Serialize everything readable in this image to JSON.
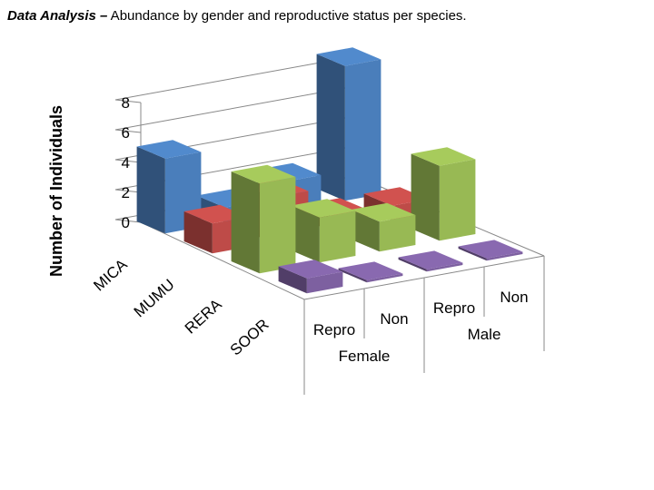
{
  "title_bold": "Data Analysis –",
  "title_rest": " Abundance by gender and reproductive status per species.",
  "chart_data": {
    "type": "bar3d",
    "ylabel": "Number of Individuals",
    "ylim": [
      0,
      8
    ],
    "yticks": [
      "0",
      "2",
      "4",
      "6",
      "8"
    ],
    "categories": [
      {
        "sub": "Repro",
        "group": "Female"
      },
      {
        "sub": "Non",
        "group": "Female"
      },
      {
        "sub": "Repro",
        "group": "Male"
      },
      {
        "sub": "Non",
        "group": "Male"
      }
    ],
    "group_labels": [
      "Female",
      "Male"
    ],
    "series": [
      {
        "name": "MICA",
        "color": "#4a7ebb",
        "values": [
          5,
          1,
          2,
          9
        ]
      },
      {
        "name": "MUMU",
        "color": "#be4b48",
        "values": [
          2,
          3,
          1,
          1
        ]
      },
      {
        "name": "RERA",
        "color": "#98b954",
        "values": [
          6,
          3,
          2,
          5
        ]
      },
      {
        "name": "SOOR",
        "color": "#7d60a0",
        "values": [
          1,
          0,
          0,
          0
        ]
      }
    ]
  }
}
